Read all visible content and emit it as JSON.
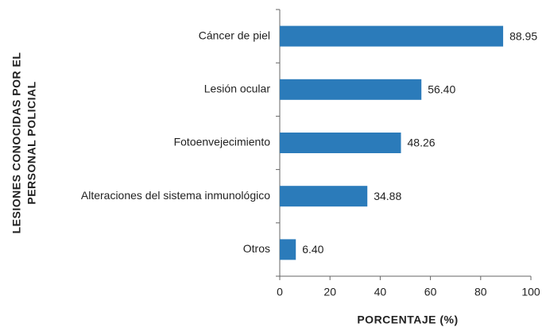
{
  "chart_data": {
    "type": "barh",
    "x_label": "PORCENTAJE  (%)",
    "y_label": [
      "LESIONES CONOCIDAS POR EL",
      "PERSONAL POLICIAL"
    ],
    "categories": [
      "Cáncer de piel",
      "Lesión ocular",
      "Fotoenvejecimiento",
      "Alteraciones del sistema inmunológico",
      "Otros"
    ],
    "values": [
      88.95,
      56.4,
      48.26,
      34.88,
      6.4
    ],
    "value_labels": [
      "88.95",
      "56.40",
      "48.26",
      "34.88",
      "6.40"
    ],
    "color": "#2b7bba",
    "xlim": [
      0,
      100
    ],
    "xticks": [
      0,
      20,
      40,
      60,
      80,
      100
    ],
    "grid": false
  }
}
